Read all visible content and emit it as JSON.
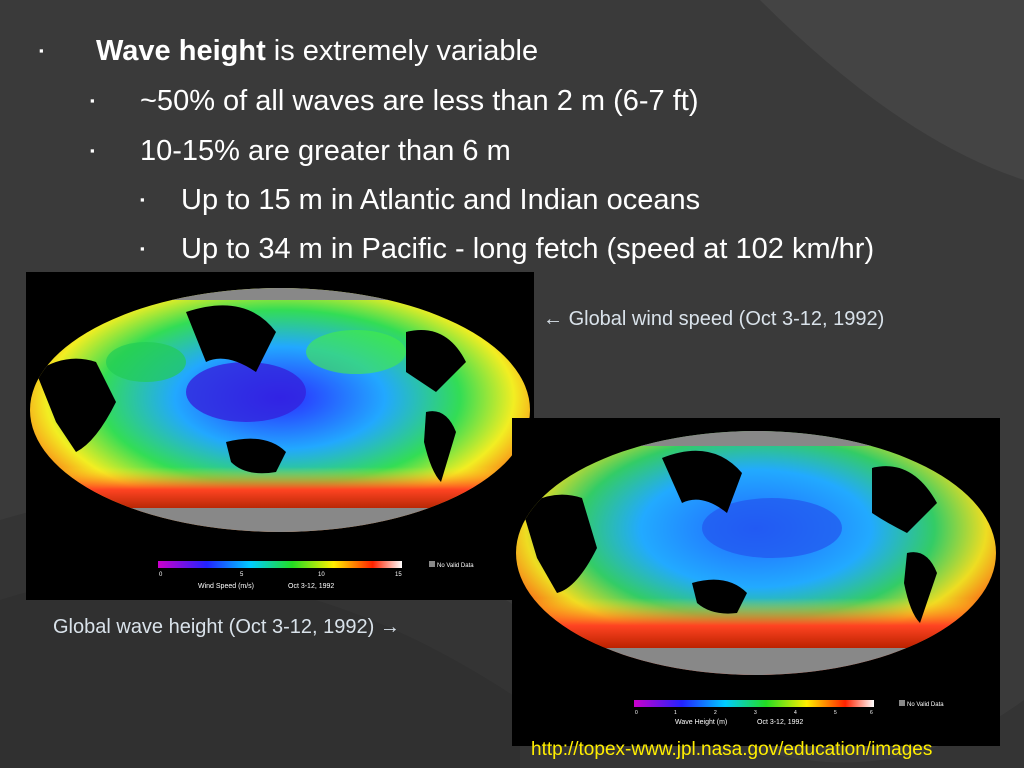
{
  "bullets": {
    "b1": {
      "bold": "Wave height",
      "rest": " is extremely variable"
    },
    "b2": "~50% of all waves are less than 2 m (6-7 ft)",
    "b3": "10-15% are greater than 6 m",
    "b4": "Up to 15 m in Atlantic and Indian oceans",
    "b5": "Up to 34 m in Pacific - long fetch (speed at 102 km/hr)",
    "marker": "▪"
  },
  "wind_map": {
    "legend_title": "Wind Speed  (m/s)",
    "legend_date": "Oct 3-12, 1992",
    "legend_ticks": [
      "0",
      "5",
      "10",
      "15"
    ],
    "no_data": "No Valid Data"
  },
  "wave_map": {
    "legend_title": "Wave Height  (m)",
    "legend_date": "Oct 3-12, 1992",
    "legend_ticks": [
      "0",
      "1",
      "2",
      "3",
      "4",
      "5",
      "6"
    ],
    "no_data": "No Valid Data"
  },
  "captions": {
    "wind": "Global wind speed (Oct 3-12, 1992)",
    "wind_arrow": "←",
    "wave": "Global wave height (Oct 3-12, 1992)",
    "wave_arrow": "→"
  },
  "source_url": "http://topex-www.jpl.nasa.gov/education/images",
  "colors": {
    "background": "#3a3a3a",
    "caption": "#d9e2ea",
    "url": "#ffee00"
  }
}
